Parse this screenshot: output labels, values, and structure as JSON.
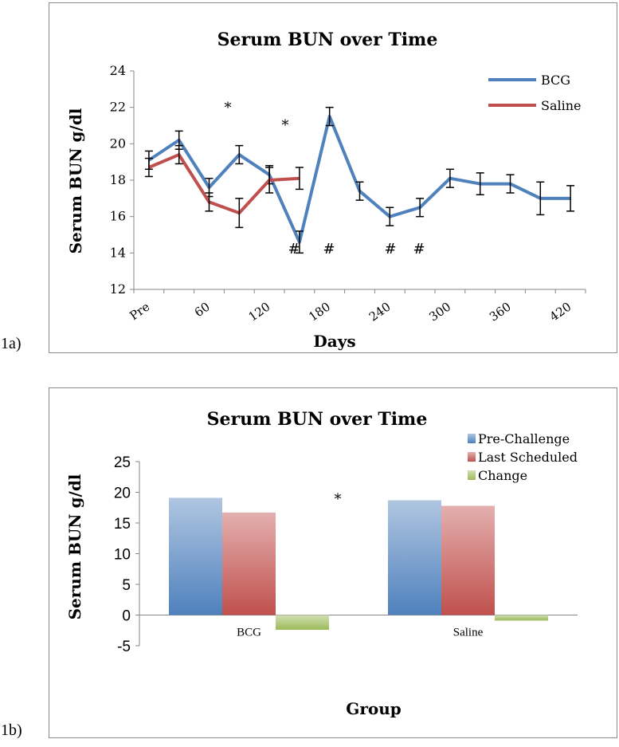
{
  "panels": {
    "a_label": "1a)",
    "b_label": "1b)"
  },
  "chart_data": [
    {
      "type": "line",
      "title": "Serum BUN over Time",
      "xlabel": "Days",
      "ylabel": "Serum BUN g/dl",
      "ylim": [
        12,
        24
      ],
      "yticks": [
        "12",
        "14",
        "16",
        "18",
        "20",
        "22",
        "24"
      ],
      "xtick_labels": [
        "Pre",
        "60",
        "120",
        "180",
        "240",
        "300",
        "360",
        "420"
      ],
      "series": [
        {
          "name": "BCG",
          "color": "#4f81bd",
          "values": [
            19.1,
            20.2,
            17.6,
            19.4,
            18.3,
            14.6,
            21.5,
            17.4,
            16.0,
            16.5,
            18.1,
            17.8,
            17.8,
            17.0,
            17.0
          ],
          "errors": [
            0.5,
            0.5,
            0.5,
            0.5,
            0.5,
            0.6,
            0.5,
            0.5,
            0.5,
            0.5,
            0.5,
            0.6,
            0.5,
            0.9,
            0.7
          ]
        },
        {
          "name": "Saline",
          "color": "#c0504d",
          "values": [
            18.7,
            19.4,
            16.8,
            16.2,
            18.0,
            18.1
          ],
          "errors": [
            0.5,
            0.5,
            0.5,
            0.8,
            0.7,
            0.6
          ]
        }
      ],
      "legend": "top-right",
      "grid": false,
      "annotations": {
        "star_1": "*",
        "star_2": "*",
        "hash_1": "#",
        "hash_2": "#",
        "hash_3": "#",
        "hash_4": "#"
      }
    },
    {
      "type": "bar",
      "title": "Serum BUN over Time",
      "xlabel": "Group",
      "ylabel": "Serum BUN g/dl",
      "ylim": [
        -5,
        25
      ],
      "yticks": [
        "-5",
        "0",
        "5",
        "10",
        "15",
        "20",
        "25"
      ],
      "categories": [
        "BCG",
        "Saline"
      ],
      "series": [
        {
          "name": "Pre-Challenge",
          "color": "#4f81bd",
          "values": [
            19.1,
            18.7
          ]
        },
        {
          "name": "Last Scheduled",
          "color": "#c0504d",
          "values": [
            16.7,
            17.8
          ]
        },
        {
          "name": "Change",
          "color": "#9bbb59",
          "values": [
            -2.4,
            -0.9
          ]
        }
      ],
      "legend": "top-right",
      "grid": false,
      "annotations": {
        "star": "*"
      }
    }
  ]
}
